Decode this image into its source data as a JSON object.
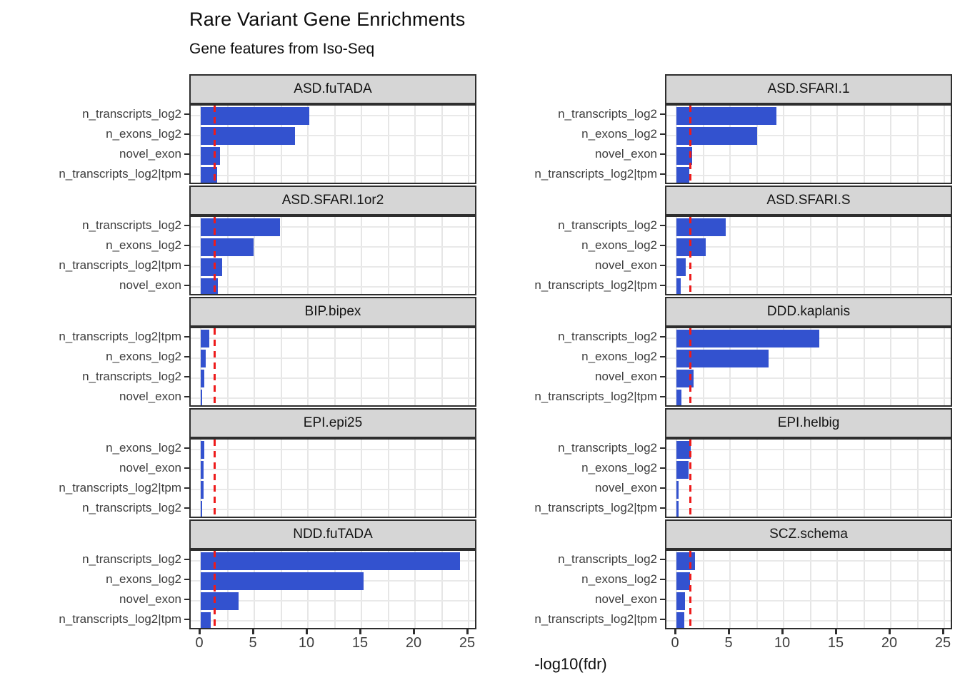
{
  "title": "Rare Variant Gene Enrichments",
  "subtitle": "Gene features from Iso-Seq",
  "colors": {
    "bar": "#3352CF",
    "reference_line": "#EE1B1B",
    "strip_background": "#D6D6D6",
    "panel_border": "#2E2E2E",
    "gridline": "#E6E6E6",
    "axis_text": "#3D3D3D"
  },
  "chart_data": {
    "type": "bar",
    "orientation": "horizontal",
    "title": "Rare Variant Gene Enrichments",
    "subtitle": "Gene features from Iso-Seq",
    "xlabel": "-log10(fdr)",
    "xlim": [
      0,
      25
    ],
    "x_ticks": [
      0,
      5,
      10,
      15,
      20,
      25
    ],
    "minor_gridline_step": 2.5,
    "grid": "on",
    "legend_position": "none",
    "reference_line": {
      "x": 1.3,
      "style": "dashed",
      "color": "#EE1B1B"
    },
    "facet_layout": {
      "rows": 5,
      "cols": 2
    },
    "facets": [
      {
        "name": "ASD.fuTADA",
        "categories": [
          "n_transcripts_log2",
          "n_exons_log2",
          "novel_exon",
          "n_transcripts_log2|tpm"
        ],
        "values": [
          10.1,
          8.8,
          1.8,
          1.55
        ]
      },
      {
        "name": "ASD.SFARI.1",
        "categories": [
          "n_transcripts_log2",
          "n_exons_log2",
          "novel_exon",
          "n_transcripts_log2|tpm"
        ],
        "values": [
          9.3,
          7.5,
          1.45,
          1.2
        ]
      },
      {
        "name": "ASD.SFARI.1or2",
        "categories": [
          "n_transcripts_log2",
          "n_exons_log2",
          "n_transcripts_log2|tpm",
          "novel_exon"
        ],
        "values": [
          7.4,
          4.9,
          2.0,
          1.6
        ]
      },
      {
        "name": "ASD.SFARI.S",
        "categories": [
          "n_transcripts_log2",
          "n_exons_log2",
          "novel_exon",
          "n_transcripts_log2|tpm"
        ],
        "values": [
          4.6,
          2.7,
          0.85,
          0.4
        ]
      },
      {
        "name": "BIP.bipex",
        "categories": [
          "n_transcripts_log2|tpm",
          "n_exons_log2",
          "n_transcripts_log2",
          "novel_exon"
        ],
        "values": [
          0.8,
          0.45,
          0.35,
          0.1
        ]
      },
      {
        "name": "DDD.kaplanis",
        "categories": [
          "n_transcripts_log2",
          "n_exons_log2",
          "novel_exon",
          "n_transcripts_log2|tpm"
        ],
        "values": [
          13.3,
          8.6,
          1.6,
          0.45
        ]
      },
      {
        "name": "EPI.epi25",
        "categories": [
          "n_exons_log2",
          "novel_exon",
          "n_transcripts_log2|tpm",
          "n_transcripts_log2"
        ],
        "values": [
          0.3,
          0.28,
          0.25,
          0.15
        ]
      },
      {
        "name": "EPI.helbig",
        "categories": [
          "n_transcripts_log2",
          "n_exons_log2",
          "novel_exon",
          "n_transcripts_log2|tpm"
        ],
        "values": [
          1.3,
          1.15,
          0.22,
          0.2
        ]
      },
      {
        "name": "NDD.fuTADA",
        "categories": [
          "n_transcripts_log2",
          "n_exons_log2",
          "novel_exon",
          "n_transcripts_log2|tpm"
        ],
        "values": [
          24.2,
          15.2,
          3.5,
          0.95
        ]
      },
      {
        "name": "SCZ.schema",
        "categories": [
          "n_transcripts_log2",
          "n_exons_log2",
          "novel_exon",
          "n_transcripts_log2|tpm"
        ],
        "values": [
          1.75,
          1.25,
          0.8,
          0.7
        ]
      }
    ]
  }
}
